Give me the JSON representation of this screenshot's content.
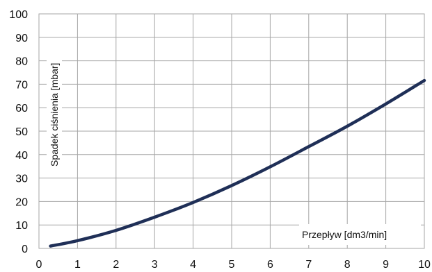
{
  "chart_data": {
    "type": "line",
    "title": "",
    "xlabel": "Przepływ [dm3/min]",
    "ylabel": "Spadek ciśnienia [mbar]",
    "xlim": [
      0,
      10
    ],
    "ylim": [
      0,
      100
    ],
    "x_ticks": [
      "0",
      "1",
      "2",
      "3",
      "4",
      "5",
      "6",
      "7",
      "8",
      "9",
      "10"
    ],
    "y_ticks": [
      "0",
      "10",
      "20",
      "30",
      "40",
      "50",
      "60",
      "70",
      "80",
      "90",
      "100"
    ],
    "grid": true,
    "legend": "none",
    "series": [
      {
        "color": "#1f2f57",
        "points": [
          [
            0.3,
            1.0
          ],
          [
            1,
            3.3
          ],
          [
            2,
            7.7
          ],
          [
            3,
            13.3
          ],
          [
            4,
            19.6
          ],
          [
            5,
            26.8
          ],
          [
            6,
            34.8
          ],
          [
            7,
            43.4
          ],
          [
            8,
            52.1
          ],
          [
            9,
            61.6
          ],
          [
            10,
            71.6
          ]
        ]
      }
    ]
  }
}
